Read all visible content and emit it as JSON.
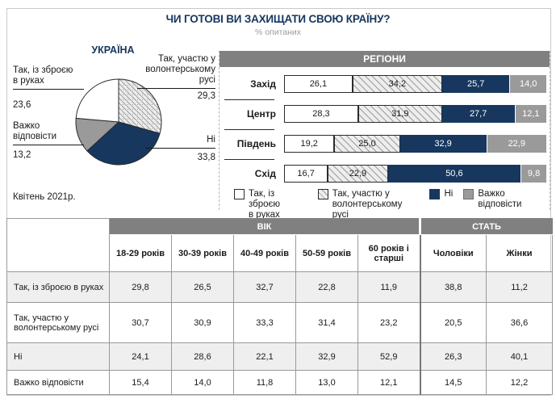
{
  "title": "ЧИ ГОТОВІ ВИ ЗАХИЩАТИ СВОЮ КРАЇНУ?",
  "subtitle": "% опитаних",
  "colors": {
    "navy": "#17375e",
    "gray": "#9a9a9a",
    "header_gray": "#808080",
    "hatch_bg": "#ededed",
    "hatch_line": "#9b9b9b",
    "row_alt": "#efefef"
  },
  "ukraine": {
    "label": "УКРАЇНА",
    "date": "Квітень 2021р.",
    "slices": [
      {
        "name": "Так, участю у волонтерському русі",
        "value": 29.3,
        "fill": "hatch"
      },
      {
        "name": "Ні",
        "value": 33.8,
        "fill": "navy"
      },
      {
        "name": "Важко відповісти",
        "value": 13.2,
        "fill": "gray"
      },
      {
        "name": "Так, із зброєю в руках",
        "value": 23.6,
        "fill": "white"
      }
    ],
    "callouts": {
      "weapon": {
        "label": "Так, із зброєю\nв руках",
        "value": "23,6"
      },
      "volunteer": {
        "label": "Так, участю у\nволонтерському\nрусі",
        "value": "29,3"
      },
      "difficult": {
        "label": "Важко\nвідповісти",
        "value": "13,2"
      },
      "no": {
        "label": "Ні",
        "value": "33,8"
      }
    }
  },
  "regions": {
    "header": "РЕГІОНИ",
    "rows": [
      {
        "label": "Захід",
        "values": [
          26.1,
          34.2,
          25.7,
          14.0
        ],
        "displays": [
          "26,1",
          "34,2",
          "25,7",
          "14,0"
        ]
      },
      {
        "label": "Центр",
        "values": [
          28.3,
          31.9,
          27.7,
          12.1
        ],
        "displays": [
          "28,3",
          "31,9",
          "27,7",
          "12,1"
        ]
      },
      {
        "label": "Південь",
        "values": [
          19.2,
          25.0,
          32.9,
          22.9
        ],
        "displays": [
          "19,2",
          "25,0",
          "32,9",
          "22,9"
        ]
      },
      {
        "label": "Схід",
        "values": [
          16.7,
          22.9,
          50.6,
          9.8
        ],
        "displays": [
          "16,7",
          "22,9",
          "50,6",
          "9,8"
        ]
      }
    ],
    "legend": [
      {
        "label": "Так, із зброєю\nв руках"
      },
      {
        "label": "Так, участю у\nволонтерському русі"
      },
      {
        "label": "Ні"
      },
      {
        "label": "Важко відповісти"
      }
    ]
  },
  "table": {
    "group_headers": [
      {
        "label": "ВІК"
      },
      {
        "label": "СТАТЬ"
      }
    ],
    "col_headers": [
      "18-29 років",
      "30-39 років",
      "40-49 років",
      "50-59 років",
      "60 років і старші",
      "Чоловіки",
      "Жінки"
    ],
    "rows": [
      {
        "label": "Так, із зброєю в руках",
        "cells": [
          "29,8",
          "26,5",
          "32,7",
          "22,8",
          "11,9",
          "38,8",
          "11,2"
        ]
      },
      {
        "label": "Так, участю у волонтерському русі",
        "cells": [
          "30,7",
          "30,9",
          "33,3",
          "31,4",
          "23,2",
          "20,5",
          "36,6"
        ]
      },
      {
        "label": "Ні",
        "cells": [
          "24,1",
          "28,6",
          "22,1",
          "32,9",
          "52,9",
          "26,3",
          "40,1"
        ]
      },
      {
        "label": "Важко відповісти",
        "cells": [
          "15,4",
          "14,0",
          "11,8",
          "13,0",
          "12,1",
          "14,5",
          "12,2"
        ]
      }
    ]
  },
  "chart_data": [
    {
      "type": "pie",
      "title": "УКРАЇНА",
      "labels": [
        "Так, із зброєю в руках",
        "Так, участю у волонтерському русі",
        "Ні",
        "Важко відповісти"
      ],
      "values": [
        23.6,
        29.3,
        33.8,
        13.2
      ],
      "annotation": "Квітень 2021р.",
      "suptitle": "ЧИ ГОТОВІ ВИ ЗАХИЩАТИ СВОЮ КРАЇНУ?",
      "units": "% опитаних"
    },
    {
      "type": "bar",
      "stacked": true,
      "orientation": "horizontal",
      "title": "РЕГІОНИ",
      "categories": [
        "Захід",
        "Центр",
        "Південь",
        "Схід"
      ],
      "series": [
        {
          "name": "Так, із зброєю в руках",
          "values": [
            26.1,
            28.3,
            19.2,
            16.7
          ]
        },
        {
          "name": "Так, участю у волонтерському русі",
          "values": [
            34.2,
            31.9,
            25.0,
            22.9
          ]
        },
        {
          "name": "Ні",
          "values": [
            25.7,
            27.7,
            32.9,
            50.6
          ]
        },
        {
          "name": "Важко відповісти",
          "values": [
            14.0,
            12.1,
            22.9,
            9.8
          ]
        }
      ],
      "xlim": [
        0,
        100
      ],
      "legend_position": "bottom",
      "data_labels": true
    },
    {
      "type": "table",
      "column_groups": [
        {
          "label": "ВІК",
          "columns": [
            "18-29 років",
            "30-39 років",
            "40-49 років",
            "50-59 років",
            "60 років і старші"
          ]
        },
        {
          "label": "СТАТЬ",
          "columns": [
            "Чоловіки",
            "Жінки"
          ]
        }
      ],
      "rows": [
        {
          "label": "Так, із зброєю в руках",
          "values": [
            29.8,
            26.5,
            32.7,
            22.8,
            11.9,
            38.8,
            11.2
          ]
        },
        {
          "label": "Так, участю у волонтерському русі",
          "values": [
            30.7,
            30.9,
            33.3,
            31.4,
            23.2,
            20.5,
            36.6
          ]
        },
        {
          "label": "Ні",
          "values": [
            24.1,
            28.6,
            22.1,
            32.9,
            52.9,
            26.3,
            40.1
          ]
        },
        {
          "label": "Важко відповісти",
          "values": [
            15.4,
            14.0,
            11.8,
            13.0,
            12.1,
            14.5,
            12.2
          ]
        }
      ]
    }
  ]
}
